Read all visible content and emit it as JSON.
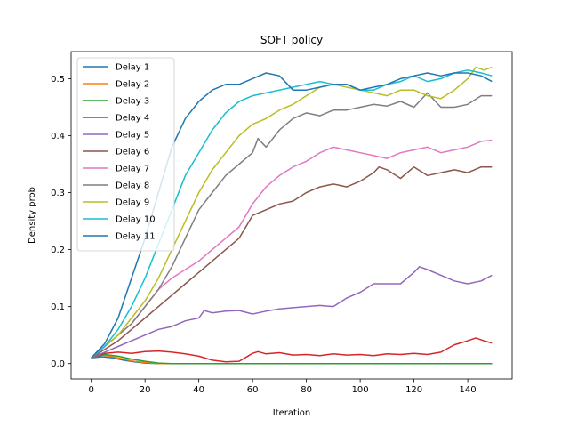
{
  "chart_data": {
    "type": "line",
    "title": "SOFT policy",
    "xlabel": "Iteration",
    "ylabel": "Density prob",
    "xlim": [
      -7.5,
      156.5
    ],
    "ylim": [
      -0.027,
      0.5475
    ],
    "xticks": [
      0,
      20,
      40,
      60,
      80,
      100,
      120,
      140
    ],
    "yticks": [
      0.0,
      0.1,
      0.2,
      0.3,
      0.4,
      0.5
    ],
    "ytick_labels": [
      "0.0",
      "0.1",
      "0.2",
      "0.3",
      "0.4",
      "0.5"
    ],
    "grid": false,
    "legend_position": "upper-left",
    "series": [
      {
        "name": "Delay 1",
        "color": "#1f77b4",
        "keypoints": [
          [
            0,
            0.01
          ],
          [
            4,
            0.012
          ],
          [
            8,
            0.01
          ],
          [
            12,
            0.006
          ],
          [
            16,
            0.003
          ],
          [
            20,
            0.001
          ],
          [
            25,
            0.0
          ],
          [
            149,
            0.0
          ]
        ]
      },
      {
        "name": "Delay 2",
        "color": "#ff7f0e",
        "keypoints": [
          [
            0,
            0.01
          ],
          [
            4,
            0.015
          ],
          [
            8,
            0.012
          ],
          [
            12,
            0.008
          ],
          [
            16,
            0.004
          ],
          [
            20,
            0.002
          ],
          [
            25,
            0.0
          ],
          [
            149,
            0.0
          ]
        ]
      },
      {
        "name": "Delay 3",
        "color": "#2ca02c",
        "keypoints": [
          [
            0,
            0.01
          ],
          [
            5,
            0.016
          ],
          [
            10,
            0.013
          ],
          [
            15,
            0.008
          ],
          [
            20,
            0.004
          ],
          [
            25,
            0.001
          ],
          [
            30,
            0.0
          ],
          [
            149,
            0.0
          ]
        ]
      },
      {
        "name": "Delay 4",
        "color": "#d62728",
        "keypoints": [
          [
            0,
            0.01
          ],
          [
            5,
            0.018
          ],
          [
            10,
            0.02
          ],
          [
            15,
            0.018
          ],
          [
            20,
            0.021
          ],
          [
            25,
            0.022
          ],
          [
            30,
            0.02
          ],
          [
            35,
            0.017
          ],
          [
            40,
            0.013
          ],
          [
            45,
            0.006
          ],
          [
            50,
            0.003
          ],
          [
            55,
            0.004
          ],
          [
            60,
            0.018
          ],
          [
            62,
            0.021
          ],
          [
            65,
            0.017
          ],
          [
            70,
            0.019
          ],
          [
            75,
            0.015
          ],
          [
            80,
            0.016
          ],
          [
            85,
            0.014
          ],
          [
            90,
            0.017
          ],
          [
            95,
            0.015
          ],
          [
            100,
            0.016
          ],
          [
            105,
            0.014
          ],
          [
            110,
            0.017
          ],
          [
            115,
            0.016
          ],
          [
            120,
            0.018
          ],
          [
            125,
            0.016
          ],
          [
            130,
            0.02
          ],
          [
            135,
            0.033
          ],
          [
            140,
            0.04
          ],
          [
            143,
            0.045
          ],
          [
            146,
            0.04
          ],
          [
            149,
            0.036
          ]
        ]
      },
      {
        "name": "Delay 5",
        "color": "#9467bd",
        "keypoints": [
          [
            0,
            0.01
          ],
          [
            5,
            0.02
          ],
          [
            10,
            0.03
          ],
          [
            15,
            0.04
          ],
          [
            20,
            0.05
          ],
          [
            25,
            0.06
          ],
          [
            30,
            0.065
          ],
          [
            35,
            0.075
          ],
          [
            40,
            0.08
          ],
          [
            42,
            0.093
          ],
          [
            45,
            0.089
          ],
          [
            50,
            0.092
          ],
          [
            55,
            0.093
          ],
          [
            60,
            0.087
          ],
          [
            65,
            0.092
          ],
          [
            70,
            0.096
          ],
          [
            75,
            0.098
          ],
          [
            80,
            0.1
          ],
          [
            85,
            0.102
          ],
          [
            90,
            0.1
          ],
          [
            95,
            0.115
          ],
          [
            100,
            0.125
          ],
          [
            105,
            0.14
          ],
          [
            110,
            0.14
          ],
          [
            115,
            0.14
          ],
          [
            120,
            0.16
          ],
          [
            122,
            0.17
          ],
          [
            125,
            0.165
          ],
          [
            130,
            0.155
          ],
          [
            135,
            0.145
          ],
          [
            140,
            0.14
          ],
          [
            145,
            0.145
          ],
          [
            149,
            0.155
          ]
        ]
      },
      {
        "name": "Delay 6",
        "color": "#8c564b",
        "keypoints": [
          [
            0,
            0.01
          ],
          [
            5,
            0.025
          ],
          [
            10,
            0.04
          ],
          [
            15,
            0.06
          ],
          [
            20,
            0.08
          ],
          [
            25,
            0.1
          ],
          [
            30,
            0.12
          ],
          [
            35,
            0.14
          ],
          [
            40,
            0.16
          ],
          [
            45,
            0.18
          ],
          [
            50,
            0.2
          ],
          [
            55,
            0.22
          ],
          [
            60,
            0.26
          ],
          [
            65,
            0.27
          ],
          [
            70,
            0.28
          ],
          [
            75,
            0.285
          ],
          [
            80,
            0.3
          ],
          [
            85,
            0.31
          ],
          [
            90,
            0.315
          ],
          [
            95,
            0.31
          ],
          [
            100,
            0.32
          ],
          [
            105,
            0.335
          ],
          [
            107,
            0.345
          ],
          [
            110,
            0.34
          ],
          [
            115,
            0.325
          ],
          [
            120,
            0.345
          ],
          [
            125,
            0.33
          ],
          [
            130,
            0.335
          ],
          [
            135,
            0.34
          ],
          [
            140,
            0.335
          ],
          [
            145,
            0.345
          ],
          [
            149,
            0.345
          ]
        ]
      },
      {
        "name": "Delay 7",
        "color": "#e377c2",
        "keypoints": [
          [
            0,
            0.01
          ],
          [
            5,
            0.03
          ],
          [
            10,
            0.05
          ],
          [
            15,
            0.07
          ],
          [
            20,
            0.1
          ],
          [
            25,
            0.13
          ],
          [
            30,
            0.15
          ],
          [
            35,
            0.165
          ],
          [
            40,
            0.18
          ],
          [
            45,
            0.2
          ],
          [
            50,
            0.22
          ],
          [
            55,
            0.24
          ],
          [
            60,
            0.28
          ],
          [
            65,
            0.31
          ],
          [
            70,
            0.33
          ],
          [
            75,
            0.345
          ],
          [
            80,
            0.355
          ],
          [
            85,
            0.37
          ],
          [
            90,
            0.38
          ],
          [
            95,
            0.375
          ],
          [
            100,
            0.37
          ],
          [
            105,
            0.365
          ],
          [
            110,
            0.36
          ],
          [
            115,
            0.37
          ],
          [
            120,
            0.375
          ],
          [
            125,
            0.38
          ],
          [
            130,
            0.37
          ],
          [
            135,
            0.375
          ],
          [
            140,
            0.38
          ],
          [
            145,
            0.39
          ],
          [
            149,
            0.392
          ]
        ]
      },
      {
        "name": "Delay 8",
        "color": "#7f7f7f",
        "keypoints": [
          [
            0,
            0.01
          ],
          [
            5,
            0.03
          ],
          [
            10,
            0.05
          ],
          [
            15,
            0.07
          ],
          [
            20,
            0.1
          ],
          [
            25,
            0.13
          ],
          [
            30,
            0.17
          ],
          [
            35,
            0.22
          ],
          [
            40,
            0.27
          ],
          [
            45,
            0.3
          ],
          [
            50,
            0.33
          ],
          [
            55,
            0.35
          ],
          [
            60,
            0.37
          ],
          [
            62,
            0.395
          ],
          [
            65,
            0.38
          ],
          [
            70,
            0.41
          ],
          [
            75,
            0.43
          ],
          [
            80,
            0.44
          ],
          [
            85,
            0.435
          ],
          [
            90,
            0.445
          ],
          [
            95,
            0.445
          ],
          [
            100,
            0.45
          ],
          [
            105,
            0.455
          ],
          [
            110,
            0.452
          ],
          [
            115,
            0.46
          ],
          [
            120,
            0.45
          ],
          [
            125,
            0.475
          ],
          [
            130,
            0.45
          ],
          [
            135,
            0.45
          ],
          [
            140,
            0.455
          ],
          [
            145,
            0.47
          ],
          [
            149,
            0.47
          ]
        ]
      },
      {
        "name": "Delay 9",
        "color": "#bcbd22",
        "keypoints": [
          [
            0,
            0.01
          ],
          [
            5,
            0.03
          ],
          [
            10,
            0.05
          ],
          [
            15,
            0.08
          ],
          [
            20,
            0.11
          ],
          [
            25,
            0.15
          ],
          [
            30,
            0.2
          ],
          [
            35,
            0.25
          ],
          [
            40,
            0.3
          ],
          [
            45,
            0.34
          ],
          [
            50,
            0.37
          ],
          [
            55,
            0.4
          ],
          [
            60,
            0.42
          ],
          [
            65,
            0.43
          ],
          [
            70,
            0.445
          ],
          [
            75,
            0.455
          ],
          [
            80,
            0.47
          ],
          [
            85,
            0.485
          ],
          [
            90,
            0.49
          ],
          [
            95,
            0.485
          ],
          [
            100,
            0.48
          ],
          [
            105,
            0.475
          ],
          [
            110,
            0.47
          ],
          [
            115,
            0.48
          ],
          [
            120,
            0.48
          ],
          [
            125,
            0.47
          ],
          [
            130,
            0.465
          ],
          [
            135,
            0.48
          ],
          [
            140,
            0.5
          ],
          [
            143,
            0.52
          ],
          [
            146,
            0.515
          ],
          [
            149,
            0.52
          ]
        ]
      },
      {
        "name": "Delay 10",
        "color": "#17becf",
        "keypoints": [
          [
            0,
            0.01
          ],
          [
            5,
            0.03
          ],
          [
            10,
            0.06
          ],
          [
            15,
            0.1
          ],
          [
            20,
            0.15
          ],
          [
            25,
            0.21
          ],
          [
            30,
            0.27
          ],
          [
            35,
            0.33
          ],
          [
            40,
            0.37
          ],
          [
            45,
            0.41
          ],
          [
            50,
            0.44
          ],
          [
            55,
            0.46
          ],
          [
            60,
            0.47
          ],
          [
            65,
            0.475
          ],
          [
            70,
            0.48
          ],
          [
            75,
            0.485
          ],
          [
            80,
            0.49
          ],
          [
            85,
            0.495
          ],
          [
            90,
            0.49
          ],
          [
            95,
            0.49
          ],
          [
            100,
            0.48
          ],
          [
            105,
            0.48
          ],
          [
            110,
            0.49
          ],
          [
            115,
            0.495
          ],
          [
            120,
            0.505
          ],
          [
            125,
            0.495
          ],
          [
            130,
            0.5
          ],
          [
            135,
            0.51
          ],
          [
            140,
            0.515
          ],
          [
            145,
            0.51
          ],
          [
            149,
            0.505
          ]
        ]
      },
      {
        "name": "Delay 11",
        "color": "#1f77b4",
        "keypoints": [
          [
            0,
            0.01
          ],
          [
            5,
            0.035
          ],
          [
            10,
            0.08
          ],
          [
            15,
            0.15
          ],
          [
            20,
            0.22
          ],
          [
            25,
            0.3
          ],
          [
            30,
            0.38
          ],
          [
            35,
            0.43
          ],
          [
            40,
            0.46
          ],
          [
            45,
            0.48
          ],
          [
            50,
            0.49
          ],
          [
            55,
            0.49
          ],
          [
            60,
            0.5
          ],
          [
            65,
            0.51
          ],
          [
            70,
            0.505
          ],
          [
            75,
            0.48
          ],
          [
            80,
            0.48
          ],
          [
            85,
            0.485
          ],
          [
            90,
            0.49
          ],
          [
            95,
            0.49
          ],
          [
            100,
            0.48
          ],
          [
            105,
            0.485
          ],
          [
            110,
            0.49
          ],
          [
            115,
            0.5
          ],
          [
            120,
            0.505
          ],
          [
            125,
            0.51
          ],
          [
            130,
            0.505
          ],
          [
            135,
            0.51
          ],
          [
            140,
            0.51
          ],
          [
            145,
            0.505
          ],
          [
            149,
            0.495
          ]
        ]
      }
    ]
  }
}
